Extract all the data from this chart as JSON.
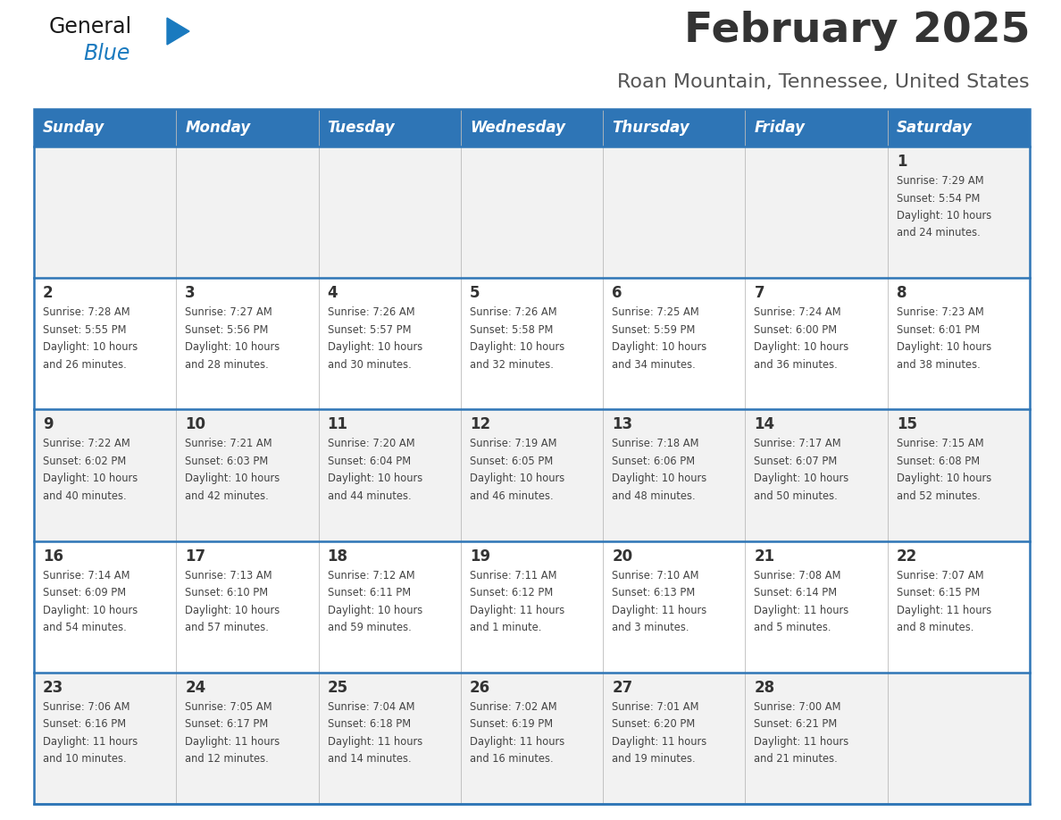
{
  "title": "February 2025",
  "subtitle": "Roan Mountain, Tennessee, United States",
  "header_bg_color": "#2E75B6",
  "header_text_color": "#FFFFFF",
  "row_bg_colors": [
    "#F2F2F2",
    "#FFFFFF"
  ],
  "separator_color": "#2E75B6",
  "day_headers": [
    "Sunday",
    "Monday",
    "Tuesday",
    "Wednesday",
    "Thursday",
    "Friday",
    "Saturday"
  ],
  "title_color": "#333333",
  "subtitle_color": "#555555",
  "day_number_color": "#333333",
  "cell_text_color": "#444444",
  "calendar_data": [
    [
      {
        "day": null,
        "sunrise": null,
        "sunset": null,
        "daylight": null
      },
      {
        "day": null,
        "sunrise": null,
        "sunset": null,
        "daylight": null
      },
      {
        "day": null,
        "sunrise": null,
        "sunset": null,
        "daylight": null
      },
      {
        "day": null,
        "sunrise": null,
        "sunset": null,
        "daylight": null
      },
      {
        "day": null,
        "sunrise": null,
        "sunset": null,
        "daylight": null
      },
      {
        "day": null,
        "sunrise": null,
        "sunset": null,
        "daylight": null
      },
      {
        "day": 1,
        "sunrise": "7:29 AM",
        "sunset": "5:54 PM",
        "daylight": "10 hours\nand 24 minutes."
      }
    ],
    [
      {
        "day": 2,
        "sunrise": "7:28 AM",
        "sunset": "5:55 PM",
        "daylight": "10 hours\nand 26 minutes."
      },
      {
        "day": 3,
        "sunrise": "7:27 AM",
        "sunset": "5:56 PM",
        "daylight": "10 hours\nand 28 minutes."
      },
      {
        "day": 4,
        "sunrise": "7:26 AM",
        "sunset": "5:57 PM",
        "daylight": "10 hours\nand 30 minutes."
      },
      {
        "day": 5,
        "sunrise": "7:26 AM",
        "sunset": "5:58 PM",
        "daylight": "10 hours\nand 32 minutes."
      },
      {
        "day": 6,
        "sunrise": "7:25 AM",
        "sunset": "5:59 PM",
        "daylight": "10 hours\nand 34 minutes."
      },
      {
        "day": 7,
        "sunrise": "7:24 AM",
        "sunset": "6:00 PM",
        "daylight": "10 hours\nand 36 minutes."
      },
      {
        "day": 8,
        "sunrise": "7:23 AM",
        "sunset": "6:01 PM",
        "daylight": "10 hours\nand 38 minutes."
      }
    ],
    [
      {
        "day": 9,
        "sunrise": "7:22 AM",
        "sunset": "6:02 PM",
        "daylight": "10 hours\nand 40 minutes."
      },
      {
        "day": 10,
        "sunrise": "7:21 AM",
        "sunset": "6:03 PM",
        "daylight": "10 hours\nand 42 minutes."
      },
      {
        "day": 11,
        "sunrise": "7:20 AM",
        "sunset": "6:04 PM",
        "daylight": "10 hours\nand 44 minutes."
      },
      {
        "day": 12,
        "sunrise": "7:19 AM",
        "sunset": "6:05 PM",
        "daylight": "10 hours\nand 46 minutes."
      },
      {
        "day": 13,
        "sunrise": "7:18 AM",
        "sunset": "6:06 PM",
        "daylight": "10 hours\nand 48 minutes."
      },
      {
        "day": 14,
        "sunrise": "7:17 AM",
        "sunset": "6:07 PM",
        "daylight": "10 hours\nand 50 minutes."
      },
      {
        "day": 15,
        "sunrise": "7:15 AM",
        "sunset": "6:08 PM",
        "daylight": "10 hours\nand 52 minutes."
      }
    ],
    [
      {
        "day": 16,
        "sunrise": "7:14 AM",
        "sunset": "6:09 PM",
        "daylight": "10 hours\nand 54 minutes."
      },
      {
        "day": 17,
        "sunrise": "7:13 AM",
        "sunset": "6:10 PM",
        "daylight": "10 hours\nand 57 minutes."
      },
      {
        "day": 18,
        "sunrise": "7:12 AM",
        "sunset": "6:11 PM",
        "daylight": "10 hours\nand 59 minutes."
      },
      {
        "day": 19,
        "sunrise": "7:11 AM",
        "sunset": "6:12 PM",
        "daylight": "11 hours\nand 1 minute."
      },
      {
        "day": 20,
        "sunrise": "7:10 AM",
        "sunset": "6:13 PM",
        "daylight": "11 hours\nand 3 minutes."
      },
      {
        "day": 21,
        "sunrise": "7:08 AM",
        "sunset": "6:14 PM",
        "daylight": "11 hours\nand 5 minutes."
      },
      {
        "day": 22,
        "sunrise": "7:07 AM",
        "sunset": "6:15 PM",
        "daylight": "11 hours\nand 8 minutes."
      }
    ],
    [
      {
        "day": 23,
        "sunrise": "7:06 AM",
        "sunset": "6:16 PM",
        "daylight": "11 hours\nand 10 minutes."
      },
      {
        "day": 24,
        "sunrise": "7:05 AM",
        "sunset": "6:17 PM",
        "daylight": "11 hours\nand 12 minutes."
      },
      {
        "day": 25,
        "sunrise": "7:04 AM",
        "sunset": "6:18 PM",
        "daylight": "11 hours\nand 14 minutes."
      },
      {
        "day": 26,
        "sunrise": "7:02 AM",
        "sunset": "6:19 PM",
        "daylight": "11 hours\nand 16 minutes."
      },
      {
        "day": 27,
        "sunrise": "7:01 AM",
        "sunset": "6:20 PM",
        "daylight": "11 hours\nand 19 minutes."
      },
      {
        "day": 28,
        "sunrise": "7:00 AM",
        "sunset": "6:21 PM",
        "daylight": "11 hours\nand 21 minutes."
      },
      {
        "day": null,
        "sunrise": null,
        "sunset": null,
        "daylight": null
      }
    ]
  ],
  "logo_color_general": "#1a1a1a",
  "logo_color_blue": "#1a7abf",
  "logo_triangle_color": "#1a7abf"
}
